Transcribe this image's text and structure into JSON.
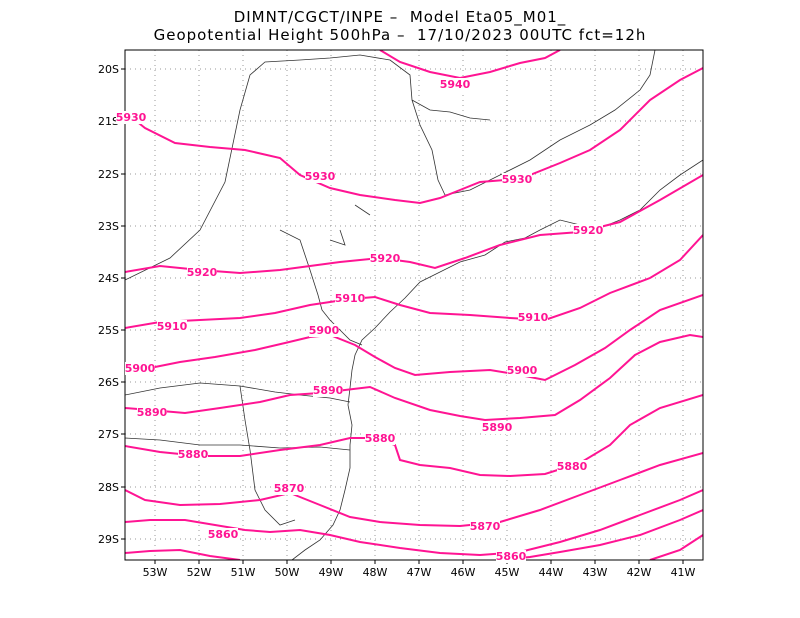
{
  "title": {
    "line1": "DIMNT/CGCT/INPE –  Model Eta05_M01_",
    "line2": "Geopotential Height 500hPa –  17/10/2023 00UTC fct=12h"
  },
  "map": {
    "lat_labels": [
      "20S",
      "21S",
      "22S",
      "23S",
      "24S",
      "25S",
      "26S",
      "27S",
      "28S",
      "29S"
    ],
    "lon_labels": [
      "53W",
      "52W",
      "51W",
      "50W",
      "49W",
      "48W",
      "47W",
      "46W",
      "45W",
      "44W",
      "43W",
      "42W",
      "41W"
    ],
    "grid": "dotted",
    "contour_color": "#ff1493",
    "contour_labels": [
      {
        "text": "5940"
      },
      {
        "text": "5930"
      },
      {
        "text": "5930"
      },
      {
        "text": "5930"
      },
      {
        "text": "5920"
      },
      {
        "text": "5920"
      },
      {
        "text": "5920"
      },
      {
        "text": "5910"
      },
      {
        "text": "5910"
      },
      {
        "text": "5910"
      },
      {
        "text": "5900"
      },
      {
        "text": "5900"
      },
      {
        "text": "5900"
      },
      {
        "text": "5890"
      },
      {
        "text": "5890"
      },
      {
        "text": "5890"
      },
      {
        "text": "5880"
      },
      {
        "text": "5880"
      },
      {
        "text": "5880"
      },
      {
        "text": "5870"
      },
      {
        "text": "5870"
      },
      {
        "text": "5860"
      },
      {
        "text": "5860"
      }
    ]
  }
}
